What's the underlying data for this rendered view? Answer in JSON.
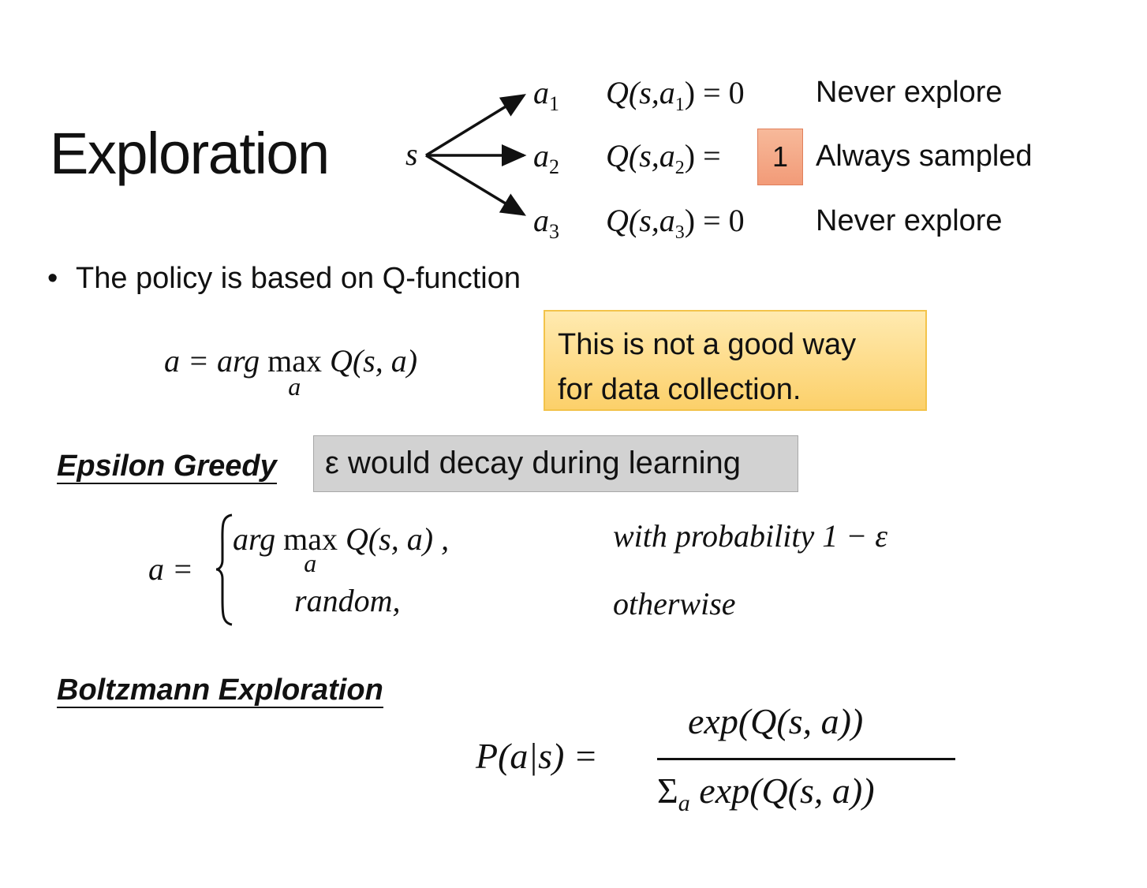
{
  "title": "Exploration",
  "tree": {
    "state": "s",
    "actions": [
      {
        "action": "a",
        "sub": "1",
        "q_expr": "Q(s,a",
        "q_sub": "1",
        "q_close": ") = ",
        "value": "0",
        "label": "Never explore",
        "highlighted": false
      },
      {
        "action": "a",
        "sub": "2",
        "q_expr": "Q(s,a",
        "q_sub": "2",
        "q_close": ") = ",
        "value": "1",
        "label": "Always sampled",
        "highlighted": true
      },
      {
        "action": "a",
        "sub": "3",
        "q_expr": "Q(s,a",
        "q_sub": "3",
        "q_close": ") = ",
        "value": "0",
        "label": "Never explore",
        "highlighted": false
      }
    ],
    "highlight_color": "#f4a582"
  },
  "bullet": "The policy is based on Q-function",
  "policy_formula": {
    "lhs": "a = arg ",
    "max": "max",
    "max_sub": "a",
    "rhs": " Q(s, a)"
  },
  "callout_yellow": {
    "line1": "This is not a good way",
    "line2": "for data collection.",
    "color": "#fcd36b"
  },
  "epsilon": {
    "heading": "Epsilon Greedy",
    "note": "ε would decay during learning",
    "lhs": "a =",
    "case1": {
      "expr_pre": "arg ",
      "max": "max",
      "max_sub": "a",
      "expr_post": " Q(s, a) ,",
      "condition": "with probability 1 − ε"
    },
    "case2": {
      "expr": "random,",
      "condition": "otherwise"
    }
  },
  "boltzmann": {
    "heading": "Boltzmann Exploration",
    "lhs": "P(a|s) =",
    "numerator": "exp(Q(s, a))",
    "denominator_sum": "Σ",
    "denominator_sub": "a",
    "denominator": " exp(Q(s, a))"
  }
}
